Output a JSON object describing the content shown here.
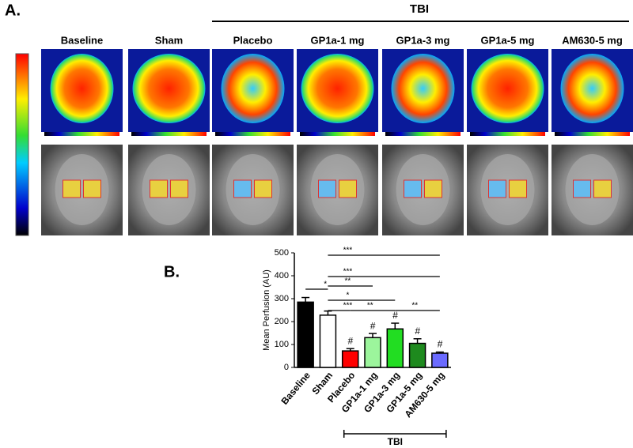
{
  "panel_a": {
    "label": "A.",
    "group_label": "TBI",
    "columns": [
      "Baseline",
      "Sham",
      "Placebo",
      "GP1a-1 mg",
      "GP1a-3 mg",
      "GP1a-5 mg",
      "AM630-5 mg"
    ]
  },
  "chart_data": {
    "type": "bar",
    "panel_label": "B.",
    "y_label": "Mean Perfusion (AU)",
    "categories": [
      "Baseline",
      "Sham",
      "Placebo",
      "GP1a-1 mg",
      "GP1a-3 mg",
      "GP1a-5 mg",
      "AM630-5 mg"
    ],
    "values": [
      285,
      228,
      72,
      130,
      168,
      105,
      62
    ],
    "errors": [
      20,
      18,
      10,
      18,
      25,
      20,
      5
    ],
    "colors": [
      "#000000",
      "#ffffff",
      "#ff0000",
      "#9cf59c",
      "#22dd22",
      "#1e8a1e",
      "#6b6bff"
    ],
    "ylim": [
      0,
      500
    ],
    "yticks": [
      0,
      100,
      200,
      300,
      400,
      500
    ],
    "significance": [
      "*",
      "***",
      "***",
      "**",
      "*",
      "***",
      "**",
      "**"
    ],
    "hash_mark": "#",
    "group_label": "TBI"
  }
}
